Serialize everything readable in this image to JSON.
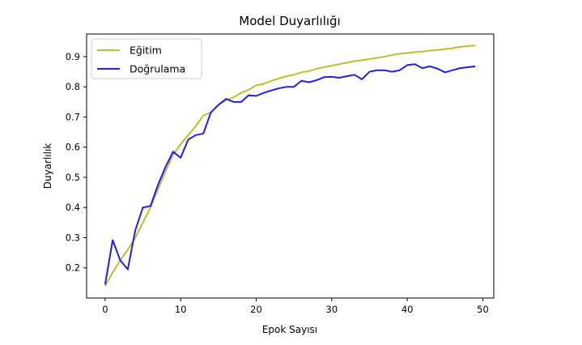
{
  "chart_data": {
    "type": "line",
    "title": "Model Duyarlılığı",
    "xlabel": "Epok Sayısı",
    "ylabel": "Duyarlılık",
    "xlim": [
      -2.45,
      51.45
    ],
    "ylim": [
      0.1,
      0.975
    ],
    "xticks": [
      0,
      10,
      20,
      30,
      40,
      50
    ],
    "yticks": [
      0.2,
      0.3,
      0.4,
      0.5,
      0.6,
      0.7,
      0.8,
      0.9
    ],
    "grid": false,
    "legend_position": "top-left",
    "x": [
      0,
      1,
      2,
      3,
      4,
      5,
      6,
      7,
      8,
      9,
      10,
      11,
      12,
      13,
      14,
      15,
      16,
      17,
      18,
      19,
      20,
      21,
      22,
      23,
      24,
      25,
      26,
      27,
      28,
      29,
      30,
      31,
      32,
      33,
      34,
      35,
      36,
      37,
      38,
      39,
      40,
      41,
      42,
      43,
      44,
      45,
      46,
      47,
      48,
      49
    ],
    "series": [
      {
        "name": "Eğitim",
        "color": "#bfbf2a",
        "values": [
          0.14,
          0.185,
          0.225,
          0.26,
          0.3,
          0.35,
          0.4,
          0.46,
          0.52,
          0.575,
          0.61,
          0.64,
          0.67,
          0.705,
          0.715,
          0.74,
          0.755,
          0.765,
          0.78,
          0.79,
          0.805,
          0.81,
          0.82,
          0.828,
          0.835,
          0.84,
          0.848,
          0.852,
          0.86,
          0.865,
          0.87,
          0.875,
          0.88,
          0.885,
          0.888,
          0.892,
          0.896,
          0.9,
          0.905,
          0.91,
          0.912,
          0.915,
          0.917,
          0.92,
          0.922,
          0.925,
          0.928,
          0.932,
          0.935,
          0.937
        ]
      },
      {
        "name": "Doğrulama",
        "color": "#1f1fef",
        "values": [
          0.145,
          0.292,
          0.225,
          0.195,
          0.325,
          0.4,
          0.405,
          0.475,
          0.535,
          0.585,
          0.565,
          0.625,
          0.64,
          0.645,
          0.715,
          0.74,
          0.76,
          0.75,
          0.75,
          0.772,
          0.77,
          0.78,
          0.788,
          0.795,
          0.8,
          0.8,
          0.82,
          0.815,
          0.822,
          0.832,
          0.833,
          0.83,
          0.835,
          0.84,
          0.825,
          0.85,
          0.855,
          0.855,
          0.85,
          0.855,
          0.872,
          0.875,
          0.862,
          0.868,
          0.86,
          0.848,
          0.855,
          0.862,
          0.865,
          0.868
        ]
      }
    ]
  }
}
